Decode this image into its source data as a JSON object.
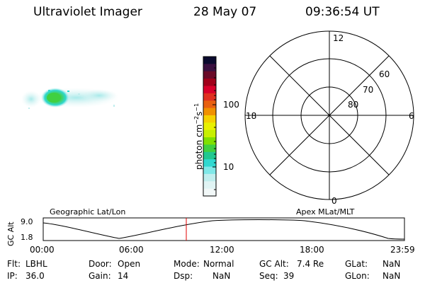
{
  "header": {
    "title": "Ultraviolet Imager",
    "date": "28 May 07",
    "time": "09:36:54 UT"
  },
  "colorbar": {
    "unit_label": "photon cm",
    "unit_sup1": "−2",
    "unit_mid": "s",
    "unit_sup2": "−1",
    "tick_100": "100",
    "tick_10": "10",
    "colors_top_to_bottom": [
      "#0a0a2e",
      "#3a1040",
      "#6a0a28",
      "#a0001a",
      "#d8002a",
      "#e03020",
      "#e86010",
      "#f09000",
      "#f5d000",
      "#e8f000",
      "#c8f000",
      "#80e000",
      "#40d040",
      "#20c890",
      "#30d8d0",
      "#80e8e8",
      "#c0eeee",
      "#e0f4f4",
      "#f2f8f8"
    ]
  },
  "polar": {
    "mlt_top": "12",
    "mlt_left": "18",
    "mlt_right": "6",
    "mlt_bottom": "0",
    "lat_60": "60",
    "lat_70": "70",
    "lat_80": "80"
  },
  "timeline": {
    "left_label": "Geographic Lat/Lon",
    "right_label": "Apex MLat/MLT",
    "axis_label": "GC Alt",
    "y_top": "9.0",
    "y_bottom": "1.8",
    "x_ticks": [
      "00:00",
      "06:00",
      "12:00",
      "18:00",
      "23:59"
    ]
  },
  "status": {
    "flt_label": "Flt:",
    "flt_value": "LBHL",
    "ip_label": "IP:",
    "ip_value": "36.0",
    "door_label": "Door:",
    "door_value": "Open",
    "gain_label": "Gain:",
    "gain_value": "14",
    "mode_label": "Mode:",
    "mode_value": "Normal",
    "dsp_label": "Dsp:",
    "dsp_value": "NaN",
    "gcalt_label": "GC Alt:",
    "gcalt_value": "7.4 Re",
    "seq_label": "Seq:",
    "seq_value": "39",
    "glat_label": "GLat:",
    "glat_value": "NaN",
    "glon_label": "GLon:",
    "glon_value": "NaN"
  },
  "colors": {
    "marker": "#e00000"
  }
}
